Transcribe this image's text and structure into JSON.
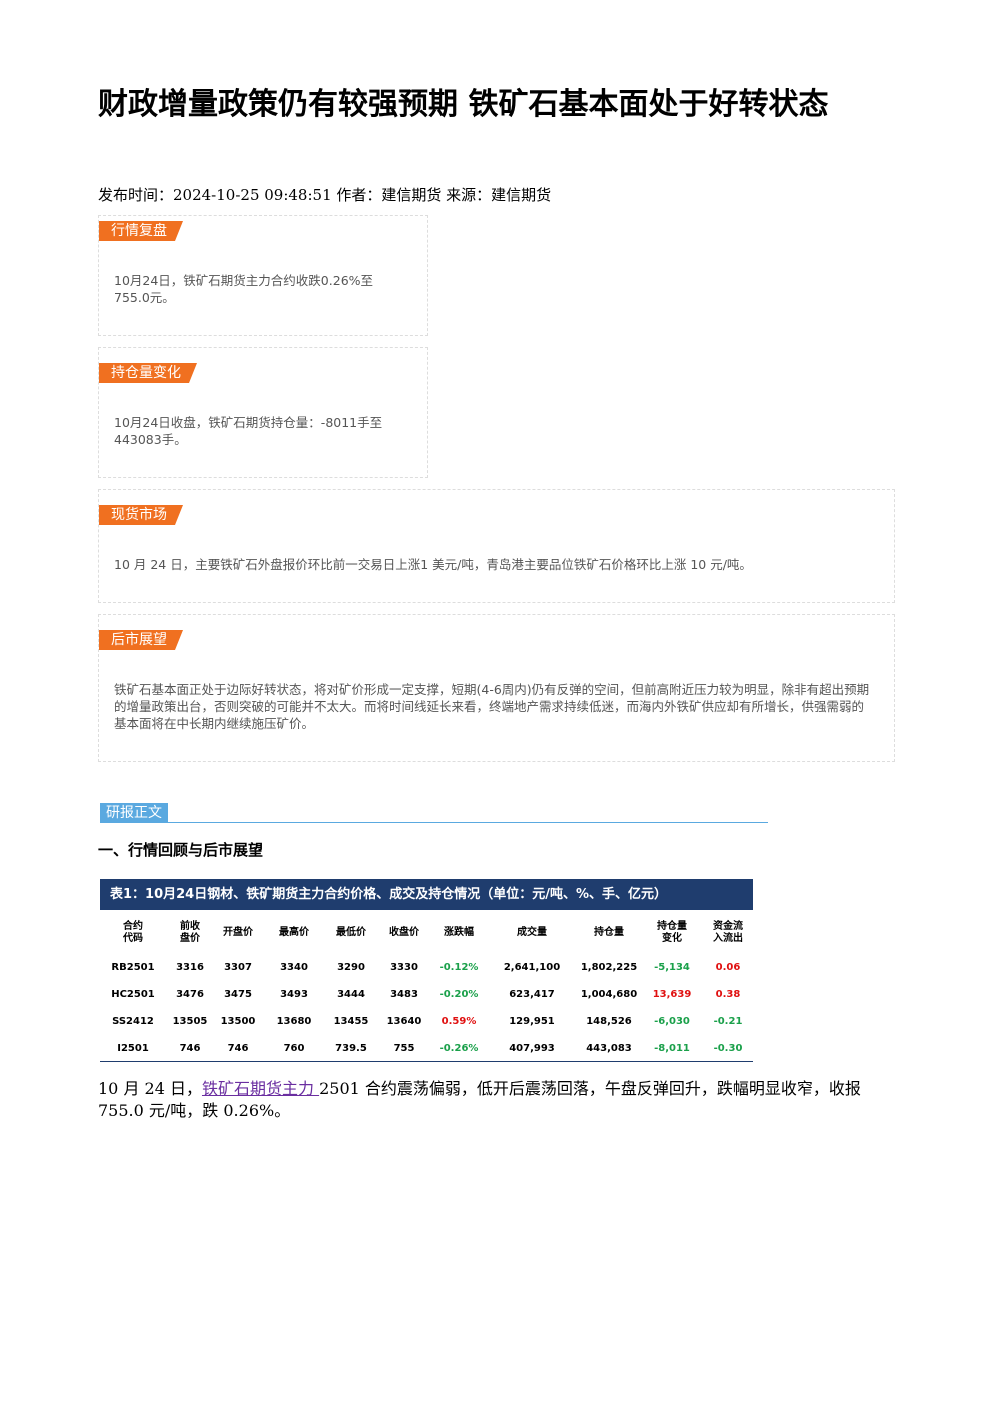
{
  "title": "财政增量政策仍有较强预期 铁矿石基本面处于好转状态",
  "meta": "发布时间：2024-10-25 09:48:51 作者：建信期货 来源：建信期货",
  "sections": [
    {
      "label": "行情复盘",
      "text": "10月24日，铁矿石期货主力合约收跌0.26%至755.0元。"
    },
    {
      "label": "持仓量变化",
      "text": "10月24日收盘，铁矿石期货持仓量：-8011手至443083手。"
    },
    {
      "label": "现货市场",
      "text": "10 月 24 日，主要铁矿石外盘报价环比前一交易日上涨1 美元/吨，青岛港主要品位铁矿石价格环比上涨 10 元/吨。"
    },
    {
      "label": "后市展望",
      "text": "铁矿石基本面正处于边际好转状态，将对矿价形成一定支撑，短期(4-6周内)仍有反弹的空间，但前高附近压力较为明显，除非有超出预期的增量政策出台，否则突破的可能并不太大。而将时间线延长来看，终端地产需求持续低迷，而海内外铁矿供应却有所增长，供强需弱的基本面将在中长期内继续施压矿价。"
    }
  ],
  "report_tag": "研报正文",
  "heading": "一、行情回顾与后市展望",
  "table": {
    "caption": "表1：10月24日钢材、铁矿期货主力合约价格、成交及持仓情况（单位：元/吨、%、手、亿元）",
    "headers": [
      "合约\n代码",
      "前收\n盘价",
      "开盘价",
      "最高价",
      "最低价",
      "收盘价",
      "涨跌幅",
      "成交量",
      "持仓量",
      "持仓量\n变化",
      "资金流\n入流出"
    ],
    "rows": [
      [
        "RB2501",
        "3316",
        "3307",
        "3340",
        "3290",
        "3330",
        "-0.12%",
        "2,641,100",
        "1,802,225",
        "-5,134",
        "0.06"
      ],
      [
        "HC2501",
        "3476",
        "3475",
        "3493",
        "3444",
        "3483",
        "-0.20%",
        "623,417",
        "1,004,680",
        "13,639",
        "0.38"
      ],
      [
        "SS2412",
        "13505",
        "13500",
        "13680",
        "13455",
        "13640",
        "0.59%",
        "129,951",
        "148,526",
        "-6,030",
        "-0.21"
      ],
      [
        "I2501",
        "746",
        "746",
        "760",
        "739.5",
        "755",
        "-0.26%",
        "407,993",
        "443,083",
        "-8,011",
        "-0.30"
      ]
    ]
  },
  "body": {
    "before": "10 月 24 日，",
    "link": "铁矿石期货主力 ",
    "after": "2501 合约震荡偏弱，低开后震荡回落，午盘反弹回升，跌幅明显收窄，收报 755.0 元/吨，跌 0.26%。"
  }
}
